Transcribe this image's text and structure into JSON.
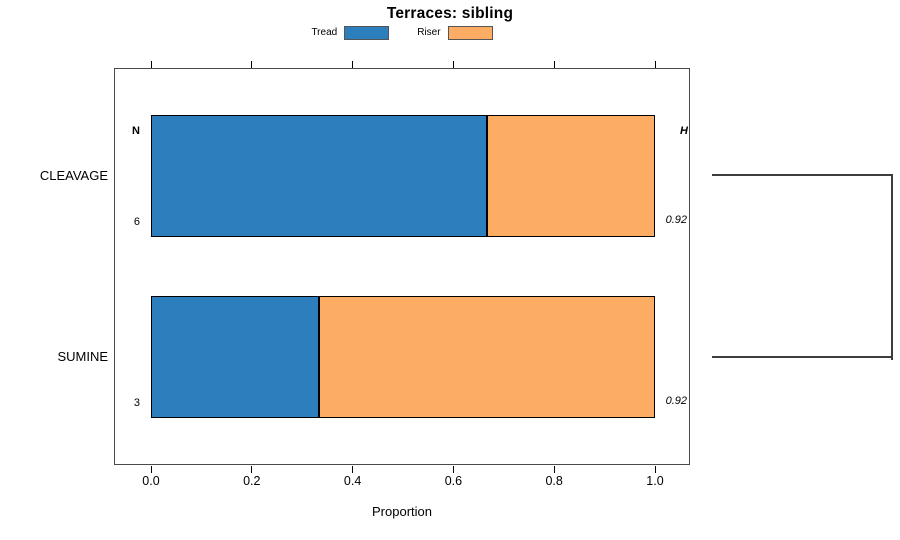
{
  "title": "Terraces: sibling",
  "legend": {
    "position": "top",
    "items": [
      {
        "label": "Tread",
        "color": "#2d7ebc"
      },
      {
        "label": "Riser",
        "color": "#fcac63"
      }
    ]
  },
  "chart_data": {
    "type": "bar",
    "orientation": "horizontal",
    "stacked": true,
    "title": "Terraces: sibling",
    "xlabel": "Proportion",
    "xlim": [
      0,
      1
    ],
    "x_ticks": [
      "0.0",
      "0.2",
      "0.4",
      "0.6",
      "0.8",
      "1.0"
    ],
    "grid": false,
    "legend_position": "top",
    "categories": [
      "CLEAVAGE",
      "SUMINE"
    ],
    "series": [
      {
        "name": "Tread",
        "color": "#2d7ebc",
        "values": [
          0.667,
          0.333
        ]
      },
      {
        "name": "Riser",
        "color": "#fcac63",
        "values": [
          0.333,
          0.667
        ]
      }
    ],
    "annotations": {
      "n_header": "N",
      "h_header": "H",
      "n_values": [
        "6",
        "3"
      ],
      "h_values": [
        "0.92",
        "0.92"
      ]
    },
    "dendrogram": {
      "joined_categories": [
        "CLEAVAGE",
        "SUMINE"
      ]
    }
  }
}
